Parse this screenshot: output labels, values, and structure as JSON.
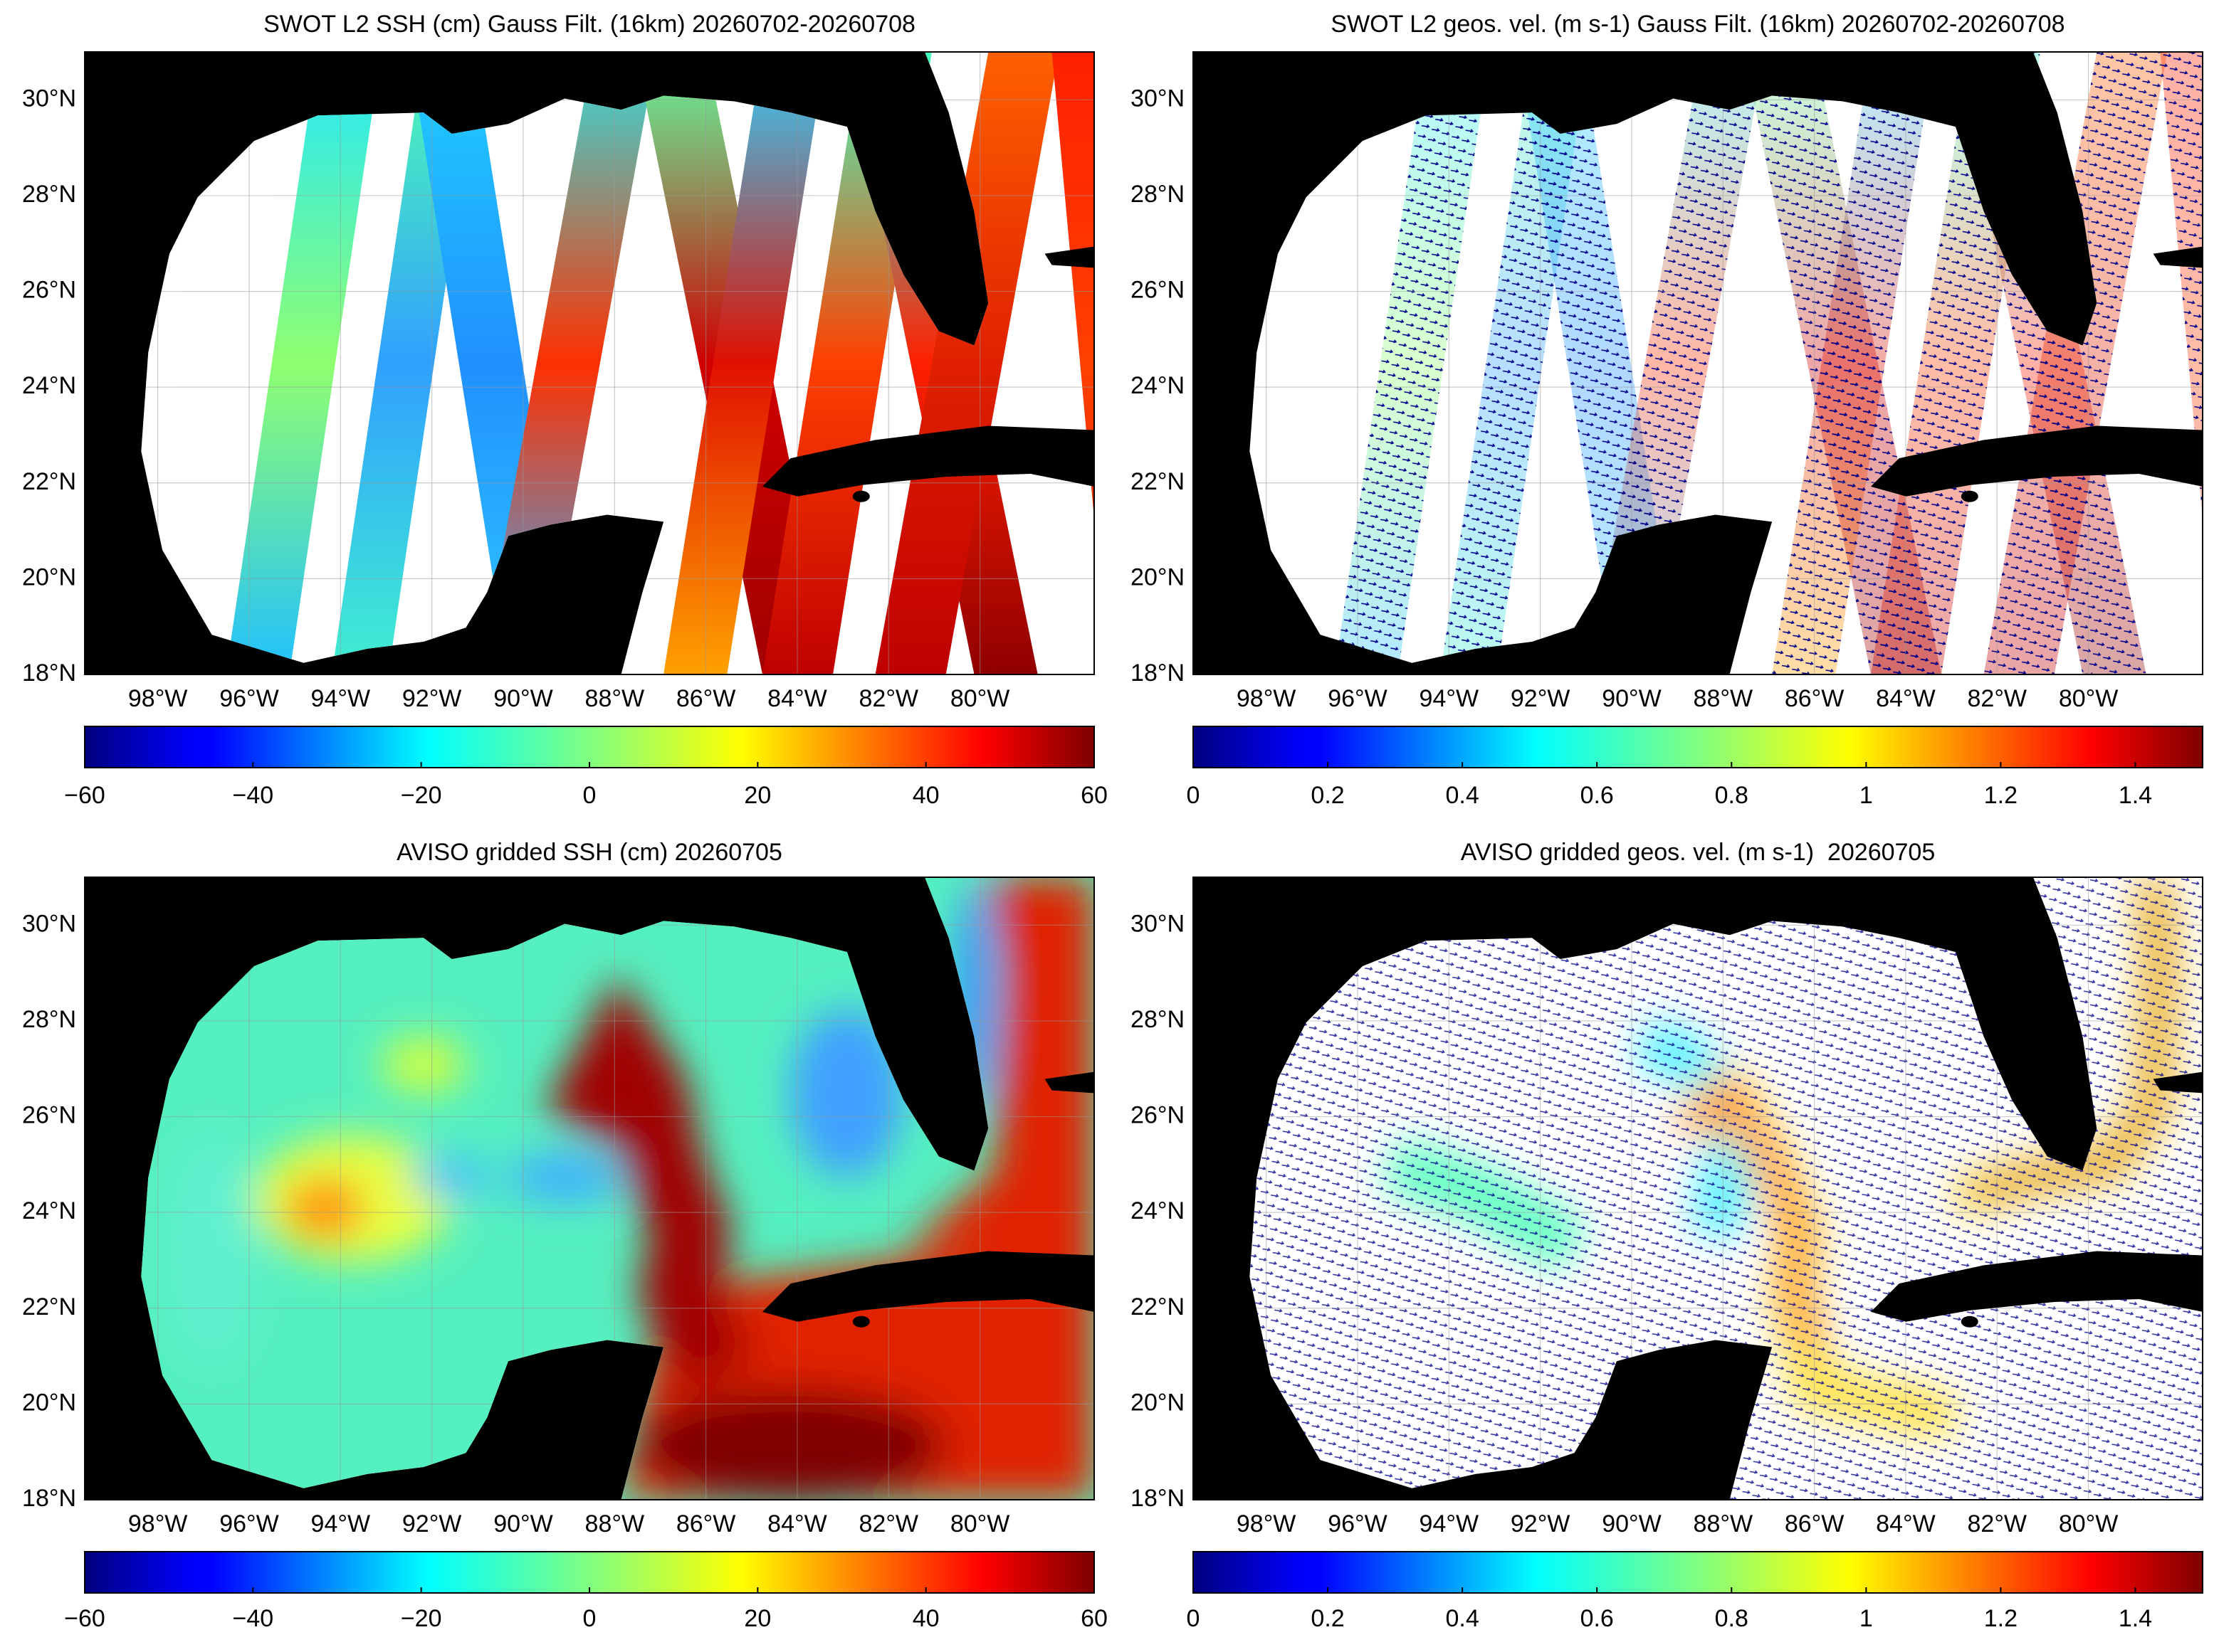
{
  "panels": [
    {
      "title": "SWOT L2 SSH (cm) Gauss Filt. (16km) 20260702-20260708",
      "colorbar": {
        "lim": [
          -60,
          60
        ],
        "ticks": [
          {
            "value": -60,
            "label": "−60"
          },
          {
            "value": -40,
            "label": "−40"
          },
          {
            "value": -20,
            "label": "−20"
          },
          0,
          20,
          40,
          60
        ]
      }
    },
    {
      "title": "SWOT L2 geos. vel. (m s-1) Gauss Filt. (16km) 20260702-20260708",
      "colorbar": {
        "lim": [
          0,
          1.5
        ],
        "ticks": [
          0,
          0.2,
          0.4,
          0.6,
          0.8,
          1,
          1.2,
          1.4
        ]
      }
    },
    {
      "title": "AVISO gridded SSH (cm) 20260705",
      "colorbar": {
        "lim": [
          -60,
          60
        ],
        "ticks": [
          {
            "value": -60,
            "label": "−60"
          },
          {
            "value": -40,
            "label": "−40"
          },
          {
            "value": -20,
            "label": "−20"
          },
          0,
          20,
          40,
          60
        ]
      }
    },
    {
      "title": "AVISO gridded geos. vel. (m s-1)  20260705",
      "colorbar": {
        "lim": [
          0,
          1.5
        ],
        "ticks": [
          0,
          0.2,
          0.4,
          0.6,
          0.8,
          1,
          1.2,
          1.4
        ]
      }
    }
  ],
  "map": {
    "lonlim": [
      -99.6,
      -77.5
    ],
    "latlim": [
      18,
      31
    ],
    "lat_ticks": [
      {
        "value": 18,
        "label": "18°N"
      },
      {
        "value": 20,
        "label": "20°N"
      },
      {
        "value": 22,
        "label": "22°N"
      },
      {
        "value": 24,
        "label": "24°N"
      },
      {
        "value": 26,
        "label": "26°N"
      },
      {
        "value": 28,
        "label": "28°N"
      },
      {
        "value": 30,
        "label": "30°N"
      }
    ],
    "lon_ticks": [
      {
        "value": -98,
        "label": "98°W"
      },
      {
        "value": -96,
        "label": "96°W"
      },
      {
        "value": -94,
        "label": "94°W"
      },
      {
        "value": -92,
        "label": "92°W"
      },
      {
        "value": -90,
        "label": "90°W"
      },
      {
        "value": -88,
        "label": "88°W"
      },
      {
        "value": -86,
        "label": "86°W"
      },
      {
        "value": -84,
        "label": "84°W"
      },
      {
        "value": -82,
        "label": "82°W"
      },
      {
        "value": -80,
        "label": "80°W"
      }
    ]
  }
}
